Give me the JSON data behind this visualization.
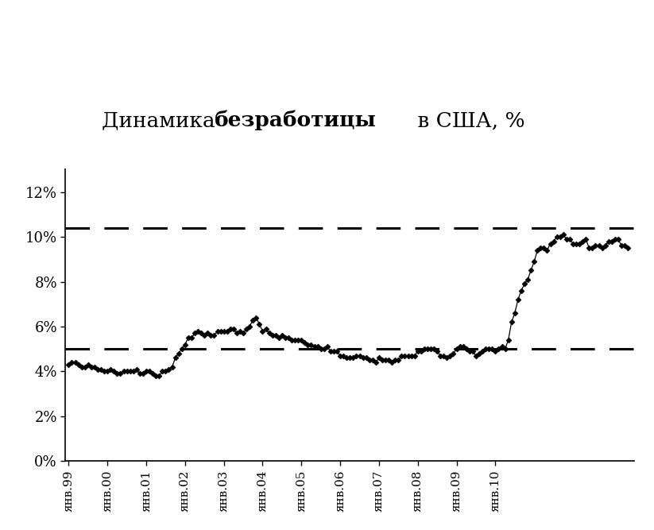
{
  "title_normal": "Динамика ",
  "title_bold": "безработицы",
  "title_end": " в США, %",
  "background_color": "#ffffff",
  "line_color": "#000000",
  "marker": "D",
  "marker_size": 3.5,
  "dashed_line_1": 10.4,
  "dashed_line_2": 5.0,
  "ylim": [
    0,
    13
  ],
  "yticks": [
    0,
    2,
    4,
    6,
    8,
    10,
    12
  ],
  "ytick_labels": [
    "0%",
    "2%",
    "4%",
    "6%",
    "8%",
    "10%",
    "12%"
  ],
  "xtick_labels": [
    "янв.99",
    "янв.00",
    "янв.01",
    "янв.02",
    "янв.03",
    "янв.04",
    "янв.05",
    "янв.06",
    "янв.07",
    "янв.08",
    "янв.09",
    "янв.10"
  ],
  "data": [
    4.3,
    4.4,
    4.4,
    4.3,
    4.2,
    4.2,
    4.3,
    4.2,
    4.2,
    4.1,
    4.1,
    4.0,
    4.0,
    4.1,
    4.0,
    3.9,
    3.9,
    4.0,
    4.0,
    4.0,
    4.0,
    4.1,
    3.9,
    3.9,
    4.0,
    4.0,
    3.9,
    3.8,
    3.8,
    4.0,
    4.0,
    4.1,
    4.2,
    4.6,
    4.8,
    5.0,
    5.2,
    5.5,
    5.5,
    5.7,
    5.8,
    5.7,
    5.6,
    5.7,
    5.6,
    5.6,
    5.8,
    5.8,
    5.8,
    5.8,
    5.9,
    5.9,
    5.7,
    5.8,
    5.7,
    5.9,
    6.0,
    6.3,
    6.4,
    6.1,
    5.8,
    5.9,
    5.7,
    5.6,
    5.6,
    5.5,
    5.6,
    5.5,
    5.5,
    5.4,
    5.4,
    5.4,
    5.4,
    5.3,
    5.2,
    5.2,
    5.1,
    5.1,
    5.0,
    5.0,
    5.1,
    4.9,
    4.9,
    4.9,
    4.7,
    4.7,
    4.6,
    4.6,
    4.6,
    4.7,
    4.7,
    4.6,
    4.6,
    4.5,
    4.5,
    4.4,
    4.6,
    4.5,
    4.5,
    4.5,
    4.4,
    4.5,
    4.5,
    4.7,
    4.7,
    4.7,
    4.7,
    4.7,
    4.9,
    4.9,
    5.0,
    5.0,
    5.0,
    5.0,
    4.9,
    4.7,
    4.7,
    4.6,
    4.7,
    4.8,
    5.0,
    5.1,
    5.1,
    5.0,
    4.9,
    4.9,
    4.7,
    4.8,
    4.9,
    5.0,
    5.0,
    5.0,
    4.9,
    5.0,
    5.1,
    5.0,
    5.4,
    6.2,
    6.6,
    7.2,
    7.6,
    7.9,
    8.1,
    8.5,
    8.9,
    9.4,
    9.5,
    9.5,
    9.4,
    9.7,
    9.8,
    10.0,
    10.0,
    10.1,
    9.9,
    9.9,
    9.7,
    9.7,
    9.7,
    9.8,
    9.9,
    9.5,
    9.5,
    9.6,
    9.6,
    9.5,
    9.6,
    9.8,
    9.8,
    9.9,
    9.9,
    9.6,
    9.6,
    9.5
  ]
}
